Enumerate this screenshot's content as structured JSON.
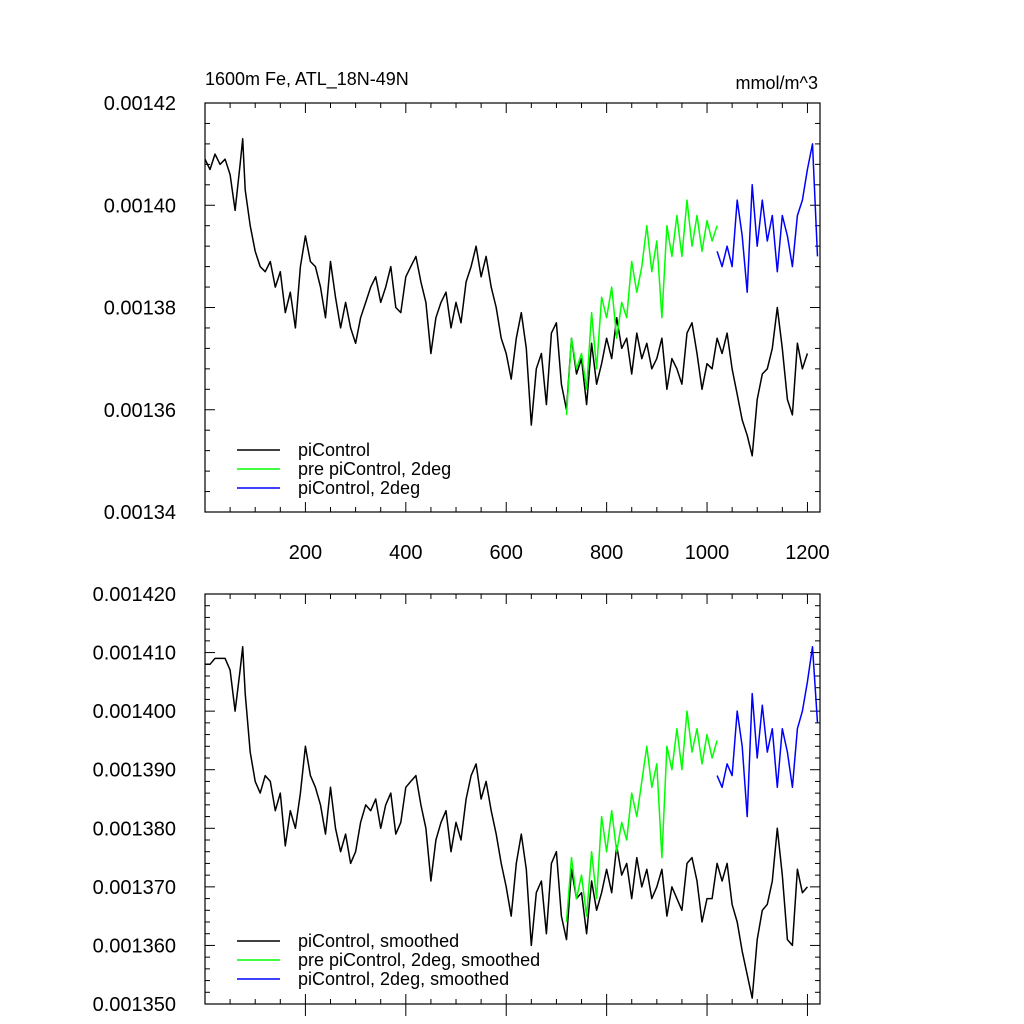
{
  "chart_data": [
    {
      "type": "line",
      "title_left": "1600m Fe, ATL_18N-49N",
      "title_right": "mmol/m^3",
      "xlabel": "",
      "ylabel": "",
      "xlim": [
        0,
        1225
      ],
      "ylim": [
        0.00134,
        0.00142
      ],
      "xticks": [
        200,
        400,
        600,
        800,
        1000,
        1200
      ],
      "xtick_labels": [
        "200",
        "400",
        "600",
        "800",
        "1000",
        "1200"
      ],
      "yticks": [
        0.00134,
        0.00136,
        0.00138,
        0.0014,
        0.00142
      ],
      "ytick_labels": [
        "0.00134",
        "0.00136",
        "0.00138",
        "0.00140",
        "0.00142"
      ],
      "grid": false,
      "legend_position": "bottom-left",
      "series": [
        {
          "name": "piControl",
          "color": "#000000",
          "x": [
            0,
            10,
            20,
            30,
            40,
            50,
            60,
            70,
            75,
            80,
            90,
            100,
            110,
            120,
            130,
            140,
            150,
            160,
            170,
            180,
            190,
            200,
            210,
            220,
            230,
            240,
            250,
            260,
            270,
            280,
            290,
            300,
            310,
            320,
            330,
            340,
            350,
            360,
            370,
            380,
            390,
            400,
            410,
            420,
            430,
            440,
            450,
            460,
            470,
            480,
            490,
            500,
            510,
            520,
            530,
            540,
            550,
            560,
            570,
            580,
            590,
            600,
            610,
            620,
            630,
            640,
            650,
            660,
            670,
            680,
            690,
            700,
            710,
            720,
            730,
            740,
            750,
            760,
            770,
            780,
            790,
            800,
            810,
            820,
            830,
            840,
            850,
            860,
            870,
            880,
            890,
            900,
            910,
            920,
            930,
            940,
            950,
            960,
            970,
            980,
            990,
            1000,
            1010,
            1020,
            1030,
            1040,
            1050,
            1060,
            1070,
            1080,
            1090,
            1100,
            1110,
            1120,
            1130,
            1140,
            1150,
            1160,
            1170,
            1180,
            1190,
            1200
          ],
          "y": [
            0.001409,
            0.001407,
            0.00141,
            0.001408,
            0.001409,
            0.001406,
            0.001399,
            0.001408,
            0.001413,
            0.001403,
            0.001396,
            0.001391,
            0.001388,
            0.001387,
            0.001389,
            0.001384,
            0.001387,
            0.001379,
            0.001383,
            0.001376,
            0.001388,
            0.001394,
            0.001389,
            0.001388,
            0.001384,
            0.001378,
            0.001389,
            0.001382,
            0.001376,
            0.001381,
            0.001376,
            0.001373,
            0.001378,
            0.001381,
            0.001384,
            0.001386,
            0.001381,
            0.001384,
            0.001388,
            0.00138,
            0.001379,
            0.001386,
            0.001388,
            0.00139,
            0.001385,
            0.001381,
            0.001371,
            0.001378,
            0.001381,
            0.001383,
            0.001376,
            0.001381,
            0.001377,
            0.001385,
            0.001388,
            0.001392,
            0.001386,
            0.00139,
            0.001384,
            0.00138,
            0.001374,
            0.001371,
            0.001366,
            0.001374,
            0.001379,
            0.001372,
            0.001357,
            0.001368,
            0.001371,
            0.001361,
            0.001375,
            0.001377,
            0.001365,
            0.00136,
            0.001374,
            0.001367,
            0.00137,
            0.001361,
            0.001373,
            0.001365,
            0.001369,
            0.001374,
            0.00137,
            0.001378,
            0.001372,
            0.001374,
            0.001367,
            0.001375,
            0.00137,
            0.001373,
            0.001368,
            0.00137,
            0.001374,
            0.001364,
            0.00137,
            0.001368,
            0.001365,
            0.001375,
            0.001377,
            0.001371,
            0.001364,
            0.001369,
            0.001368,
            0.001374,
            0.001371,
            0.001375,
            0.001368,
            0.001363,
            0.001358,
            0.001355,
            0.001351,
            0.001362,
            0.001367,
            0.001368,
            0.001372,
            0.00138,
            0.001372,
            0.001362,
            0.001359,
            0.001373,
            0.001368,
            0.001371
          ]
        },
        {
          "name": "pre piControl, 2deg",
          "color": "#00ff00",
          "x": [
            720,
            730,
            740,
            750,
            760,
            770,
            780,
            790,
            800,
            810,
            820,
            830,
            840,
            850,
            860,
            870,
            880,
            890,
            900,
            910,
            920,
            930,
            940,
            950,
            960,
            970,
            980,
            990,
            1000,
            1010,
            1020
          ],
          "y": [
            0.001359,
            0.001374,
            0.001368,
            0.001371,
            0.001364,
            0.001379,
            0.001368,
            0.001382,
            0.001378,
            0.001384,
            0.001374,
            0.001381,
            0.001378,
            0.001389,
            0.001383,
            0.001388,
            0.001396,
            0.001387,
            0.001393,
            0.001378,
            0.001396,
            0.00139,
            0.001398,
            0.00139,
            0.001401,
            0.001392,
            0.001398,
            0.001391,
            0.001397,
            0.001393,
            0.001396
          ]
        },
        {
          "name": "piControl, 2deg",
          "color": "#0000ff",
          "x": [
            1020,
            1030,
            1040,
            1050,
            1060,
            1070,
            1080,
            1090,
            1100,
            1110,
            1120,
            1130,
            1140,
            1150,
            1160,
            1170,
            1180,
            1190,
            1200,
            1210,
            1220
          ],
          "y": [
            0.001391,
            0.001388,
            0.001392,
            0.001388,
            0.001401,
            0.001394,
            0.001383,
            0.001404,
            0.001392,
            0.001401,
            0.001393,
            0.001398,
            0.001387,
            0.001398,
            0.001394,
            0.001388,
            0.001398,
            0.001401,
            0.001407,
            0.001412,
            0.00139
          ]
        }
      ]
    },
    {
      "type": "line",
      "xlabel": "",
      "ylabel": "",
      "xlim": [
        0,
        1225
      ],
      "ylim": [
        0.00135,
        0.00142
      ],
      "xticks": [
        200,
        400,
        600,
        800,
        1000,
        1200
      ],
      "yticks": [
        0.00135,
        0.00136,
        0.00137,
        0.00138,
        0.00139,
        0.0014,
        0.00141,
        0.00142
      ],
      "ytick_labels": [
        "0.001350",
        "0.001360",
        "0.001370",
        "0.001380",
        "0.001390",
        "0.001400",
        "0.001410",
        "0.001420"
      ],
      "grid": false,
      "legend_position": "bottom-left",
      "series": [
        {
          "name": "piControl, smoothed",
          "color": "#000000",
          "x": [
            0,
            10,
            20,
            30,
            40,
            50,
            60,
            70,
            75,
            80,
            90,
            100,
            110,
            120,
            130,
            140,
            150,
            160,
            170,
            180,
            190,
            200,
            210,
            220,
            230,
            240,
            250,
            260,
            270,
            280,
            290,
            300,
            310,
            320,
            330,
            340,
            350,
            360,
            370,
            380,
            390,
            400,
            410,
            420,
            430,
            440,
            450,
            460,
            470,
            480,
            490,
            500,
            510,
            520,
            530,
            540,
            550,
            560,
            570,
            580,
            590,
            600,
            610,
            620,
            630,
            640,
            650,
            660,
            670,
            680,
            690,
            700,
            710,
            720,
            730,
            740,
            750,
            760,
            770,
            780,
            790,
            800,
            810,
            820,
            830,
            840,
            850,
            860,
            870,
            880,
            890,
            900,
            910,
            920,
            930,
            940,
            950,
            960,
            970,
            980,
            990,
            1000,
            1010,
            1020,
            1030,
            1040,
            1050,
            1060,
            1070,
            1080,
            1090,
            1100,
            1110,
            1120,
            1130,
            1140,
            1150,
            1160,
            1170,
            1180,
            1190,
            1200
          ],
          "y": [
            0.001408,
            0.001408,
            0.001409,
            0.001409,
            0.001409,
            0.001407,
            0.0014,
            0.001407,
            0.001411,
            0.001403,
            0.001393,
            0.001388,
            0.001386,
            0.001389,
            0.001388,
            0.001383,
            0.001386,
            0.001377,
            0.001383,
            0.00138,
            0.001386,
            0.001394,
            0.001389,
            0.001387,
            0.001384,
            0.001379,
            0.001387,
            0.00138,
            0.001376,
            0.001379,
            0.001374,
            0.001376,
            0.001381,
            0.001384,
            0.001383,
            0.001385,
            0.00138,
            0.001384,
            0.001386,
            0.001379,
            0.001381,
            0.001387,
            0.001388,
            0.001389,
            0.001384,
            0.00138,
            0.001371,
            0.001378,
            0.001381,
            0.001383,
            0.001376,
            0.001381,
            0.001378,
            0.001385,
            0.001389,
            0.001391,
            0.001385,
            0.001388,
            0.001383,
            0.001379,
            0.001374,
            0.00137,
            0.001365,
            0.001374,
            0.001379,
            0.001373,
            0.00136,
            0.001369,
            0.001371,
            0.001362,
            0.001374,
            0.001376,
            0.001365,
            0.001361,
            0.001373,
            0.001368,
            0.001369,
            0.001362,
            0.001371,
            0.001366,
            0.001369,
            0.001373,
            0.001369,
            0.001377,
            0.001372,
            0.001374,
            0.001368,
            0.001375,
            0.00137,
            0.001373,
            0.001368,
            0.00137,
            0.001373,
            0.001365,
            0.00137,
            0.001368,
            0.001366,
            0.001374,
            0.001375,
            0.001371,
            0.001364,
            0.001368,
            0.001368,
            0.001374,
            0.001371,
            0.001374,
            0.001367,
            0.001364,
            0.001359,
            0.001355,
            0.001351,
            0.001361,
            0.001366,
            0.001367,
            0.001371,
            0.00138,
            0.001372,
            0.001361,
            0.00136,
            0.001373,
            0.001369,
            0.00137
          ]
        },
        {
          "name": "pre piControl, 2deg, smoothed",
          "color": "#00ff00",
          "x": [
            720,
            730,
            740,
            750,
            760,
            770,
            780,
            790,
            800,
            810,
            820,
            830,
            840,
            850,
            860,
            870,
            880,
            890,
            900,
            910,
            920,
            930,
            940,
            950,
            960,
            970,
            980,
            990,
            1000,
            1010,
            1020
          ],
          "y": [
            0.001364,
            0.001375,
            0.001368,
            0.001372,
            0.001365,
            0.001376,
            0.001368,
            0.001382,
            0.001376,
            0.001383,
            0.001376,
            0.001381,
            0.001378,
            0.001386,
            0.001382,
            0.001388,
            0.001394,
            0.001387,
            0.001391,
            0.001375,
            0.001394,
            0.00139,
            0.001397,
            0.00139,
            0.0014,
            0.001393,
            0.001397,
            0.001391,
            0.001396,
            0.001392,
            0.001395
          ]
        },
        {
          "name": "piControl, 2deg, smoothed",
          "color": "#0000ff",
          "x": [
            1020,
            1030,
            1040,
            1050,
            1060,
            1070,
            1080,
            1090,
            1100,
            1110,
            1120,
            1130,
            1140,
            1150,
            1160,
            1170,
            1180,
            1190,
            1200,
            1210,
            1220
          ],
          "y": [
            0.001389,
            0.001387,
            0.001391,
            0.001389,
            0.0014,
            0.001394,
            0.001382,
            0.001403,
            0.001392,
            0.001401,
            0.001393,
            0.001397,
            0.001387,
            0.001397,
            0.001393,
            0.001387,
            0.001397,
            0.0014,
            0.001405,
            0.001411,
            0.001398
          ]
        }
      ]
    }
  ]
}
